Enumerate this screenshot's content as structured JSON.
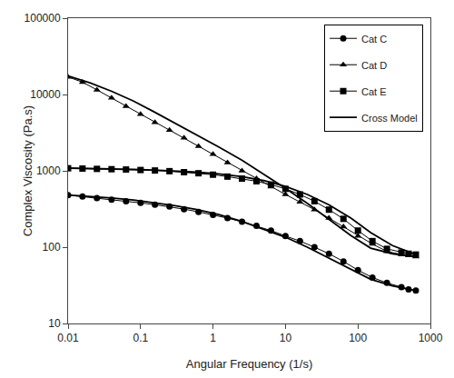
{
  "chart_data": {
    "type": "line",
    "xlabel": "Angular Frequency (1/s)",
    "ylabel": "Complex Viscosity (Pa.s)",
    "log": true,
    "xlim": [
      0.01,
      1000
    ],
    "ylim": [
      10,
      100000
    ],
    "xticks": [
      0.01,
      0.1,
      1,
      10,
      100,
      1000
    ],
    "yticks": [
      10,
      100,
      1000,
      10000,
      100000
    ],
    "grid": false,
    "legend": "upper right",
    "series": [
      {
        "name": "Cross Model",
        "color": "black",
        "line_style": "solid",
        "x": [
          0.01,
          0.02,
          0.04,
          0.08,
          0.15,
          0.3,
          0.6,
          1.2,
          2.5,
          5.0,
          10.0,
          20.0,
          40.0,
          80.0,
          150.0,
          300.0,
          630.0
        ],
        "values": [
          482,
          462,
          442,
          415,
          385,
          350,
          310,
          268,
          218,
          172,
          135,
          100,
          72,
          52,
          38,
          31,
          27
        ]
      },
      {
        "name": "Cross Model",
        "color": "black",
        "line_style": "solid",
        "x": [
          0.01,
          0.02,
          0.04,
          0.08,
          0.15,
          0.3,
          0.6,
          1.2,
          2.5,
          5.0,
          10.0,
          20.0,
          40.0,
          80.0,
          150.0,
          300.0,
          630.0
        ],
        "values": [
          17500,
          14200,
          11000,
          8200,
          6000,
          4200,
          2950,
          2050,
          1380,
          910,
          590,
          375,
          230,
          142,
          97,
          82,
          75
        ]
      },
      {
        "name": "Cross Model",
        "color": "black",
        "line_style": "solid",
        "x": [
          0.01,
          0.02,
          0.04,
          0.08,
          0.15,
          0.3,
          0.6,
          1.2,
          2.5,
          5.0,
          10.0,
          20.0,
          40.0,
          80.0,
          150.0,
          300.0,
          630.0
        ],
        "values": [
          1085,
          1075,
          1062,
          1045,
          1025,
          995,
          960,
          910,
          840,
          745,
          625,
          490,
          358,
          240,
          155,
          105,
          80
        ]
      },
      {
        "name": "Cat C",
        "color": "black",
        "marker": "circle",
        "line_style": "solid",
        "x": [
          0.01,
          0.0158,
          0.025,
          0.0398,
          0.063,
          0.1,
          0.158,
          0.251,
          0.398,
          0.631,
          1.0,
          1.585,
          2.512,
          3.981,
          6.31,
          10.0,
          15.85,
          25.12,
          39.81,
          63.1,
          100.0,
          158.5,
          251.2,
          398.1,
          500.0,
          630.0
        ],
        "values": [
          480,
          460,
          440,
          420,
          400,
          380,
          360,
          340,
          315,
          290,
          265,
          240,
          215,
          190,
          165,
          140,
          120,
          100,
          82,
          65,
          50,
          40,
          34,
          30,
          28,
          27
        ]
      },
      {
        "name": "Cat D",
        "color": "black",
        "marker": "triangle-up",
        "line_style": "solid",
        "x": [
          0.01,
          0.0158,
          0.025,
          0.0398,
          0.063,
          0.1,
          0.158,
          0.251,
          0.398,
          0.631,
          1.0,
          1.585,
          2.512,
          3.981,
          6.31,
          10.0,
          15.85,
          25.12,
          39.81,
          63.1,
          100.0,
          158.5,
          251.2,
          398.1,
          500.0,
          630.0
        ],
        "values": [
          17000,
          14500,
          11500,
          9000,
          7000,
          5500,
          4300,
          3400,
          2700,
          2100,
          1650,
          1280,
          1000,
          790,
          620,
          490,
          390,
          310,
          240,
          185,
          140,
          110,
          88,
          80,
          78,
          75
        ]
      },
      {
        "name": "Cat E",
        "color": "black",
        "marker": "square",
        "line_style": "solid",
        "x": [
          0.01,
          0.0158,
          0.025,
          0.0398,
          0.063,
          0.1,
          0.158,
          0.251,
          0.398,
          0.631,
          1.0,
          1.585,
          2.512,
          3.981,
          6.31,
          10.0,
          15.85,
          25.12,
          39.81,
          63.1,
          100.0,
          158.5,
          251.2,
          398.1,
          500.0,
          630.0
        ],
        "values": [
          1080,
          1070,
          1060,
          1050,
          1040,
          1025,
          1010,
          990,
          960,
          930,
          890,
          840,
          790,
          730,
          660,
          580,
          490,
          400,
          310,
          235,
          165,
          120,
          95,
          85,
          82,
          80
        ]
      }
    ]
  }
}
